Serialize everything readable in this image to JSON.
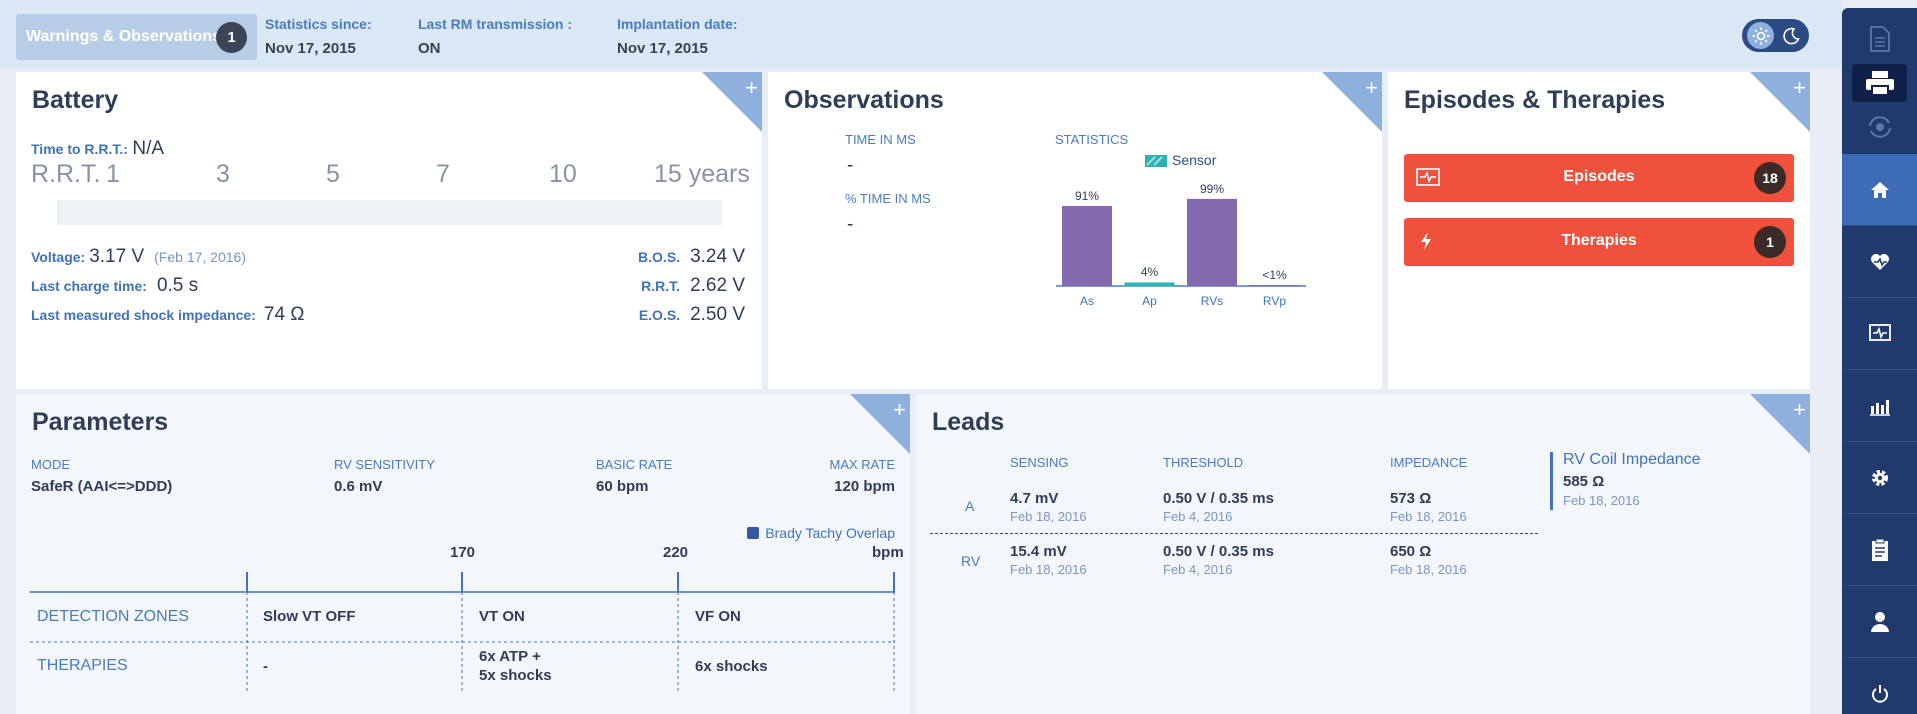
{
  "header": {
    "warnings_label": "Warnings & Observations",
    "warnings_count": "1",
    "stats_since_label": "Statistics since:",
    "stats_since_value": "Nov 17, 2015",
    "last_rm_label": "Last RM transmission :",
    "last_rm_value": "ON",
    "implantation_label": "Implantation date:",
    "implantation_value": "Nov 17, 2015"
  },
  "sidebar": {
    "items": [
      "document-icon",
      "printer-icon",
      "sync-icon",
      "home-icon",
      "heart-pulse-icon",
      "monitor-pulse-icon",
      "bar-chart-icon",
      "gear-icon",
      "clipboard-icon",
      "user-icon",
      "power-icon"
    ],
    "active": "home-icon"
  },
  "battery": {
    "title": "Battery",
    "time_to_rrt_label": "Time to R.R.T.:",
    "time_to_rrt_value": "N/A",
    "scale": {
      "label": "R.R.T.",
      "ticks": [
        "1",
        "3",
        "5",
        "7",
        "10"
      ],
      "end": "15 years"
    },
    "voltage_label": "Voltage:",
    "voltage_value": "3.17 V",
    "voltage_date": "(Feb 17, 2016)",
    "charge_label": "Last charge time:",
    "charge_value": "0.5 s",
    "shock_label": "Last measured shock impedance:",
    "shock_value": "74 Ω",
    "bos_label": "B.O.S.",
    "bos_value": "3.24 V",
    "rrt_label": "R.R.T.",
    "rrt_value": "2.62 V",
    "eos_label": "E.O.S.",
    "eos_value": "2.50 V"
  },
  "observations": {
    "title": "Observations",
    "time_ms_label": "TIME IN MS",
    "time_ms_value": "-",
    "pct_ms_label": "% TIME IN MS",
    "pct_ms_value": "-",
    "stats_label": "STATISTICS",
    "legend_label": "Sensor"
  },
  "chart_data": {
    "type": "bar",
    "categories": [
      "As",
      "Ap",
      "RVs",
      "RVp"
    ],
    "values": [
      91,
      4,
      99,
      0.5
    ],
    "labels": [
      "91%",
      "4%",
      "99%",
      "<1%"
    ],
    "colors": [
      "#8469ae",
      "#2bb3b1",
      "#8469ae",
      "#8469ae"
    ],
    "ylim": [
      0,
      100
    ],
    "legend": [
      "Sensor"
    ],
    "legend_position": "top"
  },
  "episodes": {
    "title": "Episodes & Therapies",
    "episodes_label": "Episodes",
    "episodes_count": "18",
    "therapies_label": "Therapies",
    "therapies_count": "1"
  },
  "parameters": {
    "title": "Parameters",
    "mode_label": "MODE",
    "mode_value": "SafeR (AAI<=>DDD)",
    "rv_sens_label": "RV SENSITIVITY",
    "rv_sens_value": "0.6 mV",
    "basic_rate_label": "BASIC RATE",
    "basic_rate_value": "60 bpm",
    "max_rate_label": "MAX RATE",
    "max_rate_value": "120 bpm",
    "overlap_label": "Brady Tachy Overlap",
    "tick_170": "170",
    "tick_220": "220",
    "tick_unit": "bpm",
    "zones_label": "DETECTION ZONES",
    "zone1": "Slow VT OFF",
    "zone2": "VT ON",
    "zone3": "VF ON",
    "therapies_label": "THERAPIES",
    "ther1": "-",
    "ther2a": "6x ATP  +",
    "ther2b": "5x shocks",
    "ther3": "6x shocks"
  },
  "leads": {
    "title": "Leads",
    "sensing_label": "SENSING",
    "threshold_label": "THRESHOLD",
    "impedance_label": "IMPEDANCE",
    "row_a": {
      "name": "A",
      "sensing": "4.7 mV",
      "sensing_date": "Feb 18, 2016",
      "threshold": "0.50 V / 0.35 ms",
      "threshold_date": "Feb 4, 2016",
      "impedance": "573 Ω",
      "impedance_date": "Feb 18, 2016"
    },
    "row_rv": {
      "name": "RV",
      "sensing": "15.4 mV",
      "sensing_date": "Feb 18, 2016",
      "threshold": "0.50 V / 0.35 ms",
      "threshold_date": "Feb 4, 2016",
      "impedance": "650 Ω",
      "impedance_date": "Feb 18, 2016"
    },
    "coil_label": "RV Coil Impedance",
    "coil_value": "585 Ω",
    "coil_date": "Feb 18, 2016"
  }
}
